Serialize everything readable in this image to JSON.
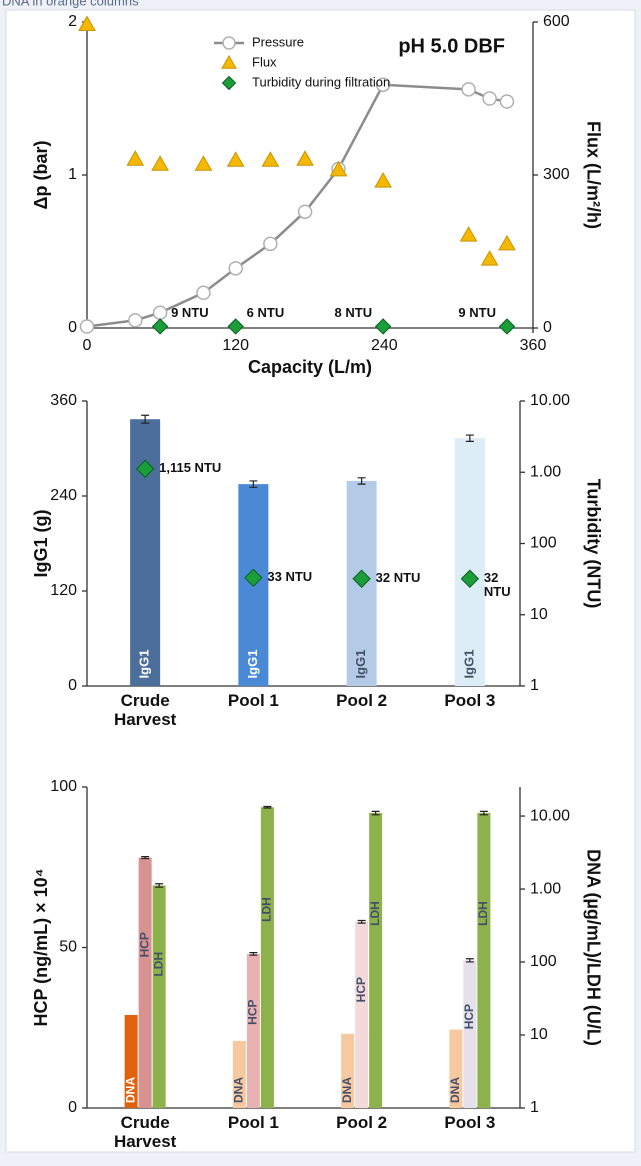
{
  "caption": "DNA in orange columns",
  "chart_data": [
    {
      "type": "line",
      "annotation": "pH 5.0 DBF",
      "xlabel": "Capacity (L/m)",
      "ylabel": "Δp (bar)",
      "y2label": "Flux (L/m²/h)",
      "xlim": [
        0,
        360
      ],
      "xticks": [
        0,
        120,
        240,
        360
      ],
      "ylim": [
        0,
        2
      ],
      "yticks": [
        0,
        1,
        2
      ],
      "y2lim": [
        0,
        600
      ],
      "y2ticks": [
        0,
        300,
        600
      ],
      "legend": "upper left",
      "series": [
        {
          "name": "Pressure",
          "color": "#8c8c8c",
          "marker": "circle",
          "line": true,
          "x": [
            0,
            39,
            59,
            94,
            120,
            148,
            176,
            203,
            239,
            308,
            325,
            339
          ],
          "values": [
            0.01,
            0.05,
            0.1,
            0.23,
            0.39,
            0.55,
            0.76,
            1.04,
            1.59,
            1.56,
            1.5,
            1.48
          ]
        },
        {
          "name": "Flux",
          "color": "#f5b800",
          "marker": "triangle",
          "axis": "y2",
          "x": [
            0,
            39,
            59,
            94,
            120,
            148,
            176,
            203,
            239,
            308,
            325,
            339
          ],
          "values": [
            595,
            331,
            321,
            321,
            329,
            329,
            331,
            310,
            288,
            182,
            135,
            165
          ]
        },
        {
          "name": "Turbidity during filtration",
          "color": "#1a9e3a",
          "marker": "diamond",
          "x": [
            59,
            120,
            239,
            339
          ],
          "values": [
            0.01,
            0.01,
            0.01,
            0.01
          ],
          "labels": [
            "9 NTU",
            "6 NTU",
            "8 NTU",
            "9 NTU"
          ]
        }
      ]
    },
    {
      "type": "bar",
      "ylabel": "IgG1 (g)",
      "y2label": "Turbidity (NTU)",
      "categories": [
        "Crude Harvest",
        "Pool 1",
        "Pool 2",
        "Pool 3"
      ],
      "ylim": [
        0,
        360
      ],
      "yticks": [
        0,
        120,
        240,
        360
      ],
      "y2lim": [
        1,
        10000
      ],
      "y2scale": "log",
      "y2ticks": [
        {
          "value": 10000,
          "label": "10.00"
        },
        {
          "value": 1000,
          "label": "1.00"
        },
        100,
        10,
        1
      ],
      "series": [
        {
          "name": "IgG1",
          "values": [
            337,
            255,
            259,
            313
          ],
          "errors": [
            5,
            4,
            4,
            4
          ],
          "colors": [
            "#4b6e9b",
            "#4a89d6",
            "#b3cbe6",
            "#dcedf6"
          ]
        },
        {
          "axis": "y2",
          "marker": "diamond",
          "color": "#1a9e3a",
          "values": [
            1115,
            33,
            32,
            32
          ],
          "value_labels": [
            "1,115 NTU",
            "33 NTU",
            "32 NTU",
            "32 NTU"
          ]
        }
      ]
    },
    {
      "type": "bar",
      "ylabel": "HCP (ng/mL) × 10⁴",
      "y2label": "DNA (µg/mL)/LDH (U/L)",
      "categories": [
        "Crude Harvest",
        "Pool 1",
        "Pool 2",
        "Pool 3"
      ],
      "ylim": [
        0,
        100
      ],
      "yticks": [
        0,
        50,
        100
      ],
      "y2lim": [
        1,
        25000
      ],
      "y2scale": "log",
      "y2ticks": [
        {
          "value": 10000,
          "label": "10.00"
        },
        {
          "value": 1000,
          "label": "1.00"
        },
        100,
        10,
        1
      ],
      "series": [
        {
          "name": "DNA",
          "axis": "y2",
          "values": [
            18.8,
            8.3,
            10.4,
            11.9
          ],
          "colors": [
            "#e0620f",
            "#f8c9a0",
            "#f8c9a0",
            "#f8c9a0"
          ]
        },
        {
          "name": "HCP",
          "values": [
            78,
            48,
            58,
            46
          ],
          "errors": [
            0.3,
            0.4,
            0.4,
            0.5
          ],
          "colors": [
            "#d89292",
            "#e8b2b2",
            "#f3d9d9",
            "#e5e0ec"
          ]
        },
        {
          "name": "LDH",
          "axis": "y2",
          "values": [
            1120,
            13200,
            11000,
            11000
          ],
          "errors": [
            60,
            300,
            600,
            600
          ],
          "colors": [
            "#8db14b",
            "#8db14b",
            "#8db14b",
            "#8db14b"
          ]
        }
      ]
    }
  ]
}
